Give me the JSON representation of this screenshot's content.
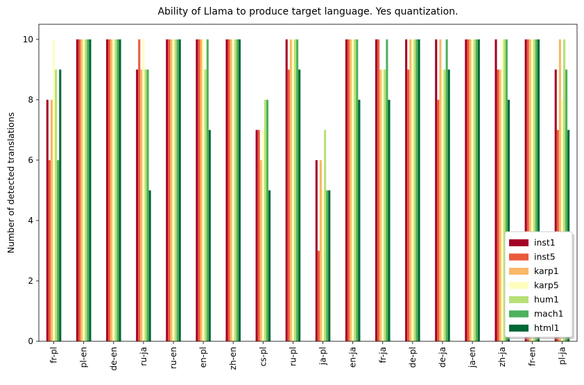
{
  "chart_data": {
    "type": "bar",
    "title": "Ability of Llama to produce target language. Yes quantization.",
    "xlabel": "",
    "ylabel": "Number of detected translations",
    "ylim": [
      0,
      10.5
    ],
    "yticks": [
      0,
      2,
      4,
      6,
      8,
      10
    ],
    "legend_position": "lower-right",
    "grid": false,
    "categories": [
      "fr-pl",
      "pl-en",
      "de-en",
      "ru-ja",
      "ru-en",
      "en-pl",
      "zh-en",
      "cs-pl",
      "ru-pl",
      "ja-pl",
      "en-ja",
      "fr-ja",
      "de-pl",
      "de-ja",
      "ja-en",
      "zh-ja",
      "fr-en",
      "pl-ja"
    ],
    "series": [
      {
        "name": "inst1",
        "color": "#a50026",
        "values": [
          8,
          10,
          10,
          9,
          10,
          10,
          10,
          7,
          10,
          6,
          10,
          10,
          10,
          10,
          10,
          10,
          10,
          9
        ]
      },
      {
        "name": "inst5",
        "color": "#ea5a3a",
        "values": [
          6,
          10,
          10,
          10,
          10,
          10,
          10,
          7,
          9,
          3,
          10,
          10,
          9,
          8,
          10,
          9,
          10,
          7
        ]
      },
      {
        "name": "karp1",
        "color": "#f9b768",
        "values": [
          8,
          10,
          10,
          9,
          10,
          10,
          10,
          6,
          10,
          6,
          10,
          9,
          10,
          10,
          10,
          9,
          10,
          10
        ]
      },
      {
        "name": "karp5",
        "color": "#fefebd",
        "values": [
          10,
          10,
          10,
          10,
          10,
          10,
          10,
          7,
          10,
          5,
          10,
          9,
          10,
          9,
          10,
          10,
          10,
          8
        ]
      },
      {
        "name": "hum1",
        "color": "#b7e075",
        "values": [
          9,
          10,
          10,
          9,
          10,
          9,
          10,
          8,
          10,
          7,
          10,
          9,
          10,
          9,
          10,
          10,
          10,
          10
        ]
      },
      {
        "name": "mach1",
        "color": "#4eb15d",
        "values": [
          6,
          10,
          10,
          9,
          10,
          10,
          10,
          8,
          10,
          5,
          10,
          10,
          10,
          10,
          10,
          10,
          10,
          9
        ]
      },
      {
        "name": "html1",
        "color": "#006837",
        "values": [
          9,
          10,
          10,
          5,
          10,
          7,
          10,
          5,
          9,
          5,
          8,
          8,
          10,
          9,
          10,
          8,
          10,
          7
        ]
      }
    ]
  }
}
